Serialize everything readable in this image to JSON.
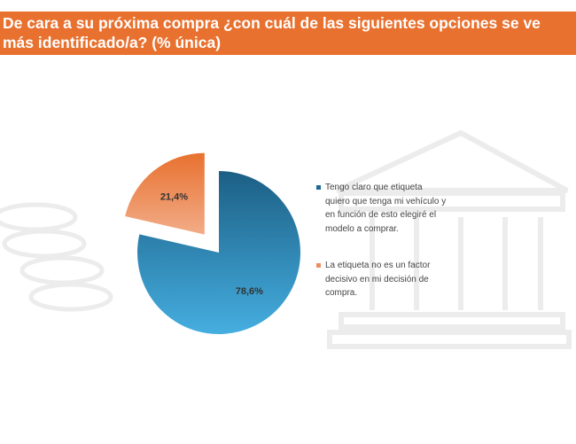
{
  "title": "De cara a su próxima compra ¿con cuál de las siguientes opciones se ve más identificado/a? (% única)",
  "colors": {
    "header": "#E8712F",
    "series1_dark": "#1C5F85",
    "series1_light": "#45AEE0",
    "series2_dark": "#E8712F",
    "series2_light": "#F2AC88"
  },
  "chart_data": {
    "type": "pie",
    "title": "De cara a su próxima compra ¿con cuál de las siguientes opciones se ve más identificado/a? (% única)",
    "categories": [
      "Tengo claro que etiqueta quiero que tenga mi vehículo y en función de esto elegiré el modelo a comprar.",
      "La etiqueta no es un factor decisivo en mi decisión de compra."
    ],
    "values": [
      78.6,
      21.4
    ],
    "labels": [
      "78,6%",
      "21,4%"
    ],
    "exploded": [
      false,
      true
    ],
    "legend_position": "right"
  }
}
